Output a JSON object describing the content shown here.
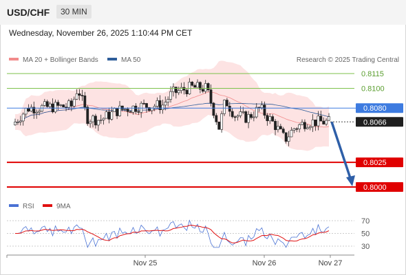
{
  "header": {
    "symbol": "USD/CHF",
    "timeframe": "30 MIN"
  },
  "datetime": "Wednesday, November 26, 2025 1:10:44 PM CET",
  "legend": {
    "ma20": {
      "label": "MA 20 + Bollinger Bands",
      "color": "#f28b8b"
    },
    "ma50": {
      "label": "MA 50",
      "color": "#2e5d9a"
    },
    "credit": "Research © 2025 Trading Central"
  },
  "rsi_legend": {
    "rsi": {
      "label": "RSI",
      "color": "#4a72d4"
    },
    "ma": {
      "label": "9MA",
      "color": "#e01010"
    }
  },
  "colors": {
    "up": "#ffffff",
    "down": "#222222",
    "resistance": "#7cc24a",
    "support": "#e00000",
    "pivot": "#3d7be0",
    "arrow": "#2e5fa8"
  },
  "chart_data": [
    {
      "type": "candlestick",
      "xlabels": [
        "Nov 25",
        "Nov 26",
        "Nov 27"
      ],
      "ylim": [
        0.799,
        0.813
      ],
      "levels": [
        {
          "value": "0.8115",
          "kind": "resistance"
        },
        {
          "value": "0.8100",
          "kind": "resistance"
        },
        {
          "value": "0.8080",
          "kind": "pivot"
        },
        {
          "value": "0.8066",
          "kind": "last-price"
        },
        {
          "value": "0.8025",
          "kind": "support"
        },
        {
          "value": "0.8000",
          "kind": "support"
        }
      ],
      "forecast": {
        "from": 0.8066,
        "to": 0.8
      },
      "series": [
        {
          "name": "MA 20 + Bollinger Bands"
        },
        {
          "name": "MA 50"
        }
      ]
    },
    {
      "type": "line",
      "ylim": [
        20,
        80
      ],
      "yticks": [
        "70",
        "50",
        "30"
      ],
      "series": [
        {
          "name": "RSI"
        },
        {
          "name": "9MA"
        }
      ]
    }
  ]
}
